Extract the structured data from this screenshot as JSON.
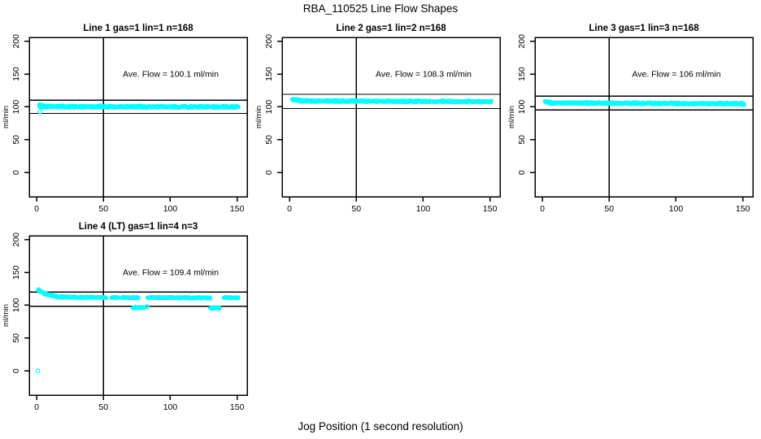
{
  "chart_data": {
    "type": "scatter",
    "title": "RBA_110525  Line Flow Shapes",
    "xlabel": "Jog Position (1 second resolution)",
    "ylabel": "ml/min",
    "point_color": "#00FFFF",
    "axis_color": "#000000",
    "x_ticks": [
      0,
      50,
      100,
      150
    ],
    "y_ticks": [
      0,
      50,
      100,
      150,
      200
    ],
    "xlim": [
      -5.5,
      157.5
    ],
    "ylim": [
      -37,
      206
    ],
    "vline_x": 50,
    "legend": "none",
    "grid": false,
    "panels": [
      {
        "title": "Line 1 gas=1 lin=1 n=168",
        "ave_flow": 100.1,
        "ave_label": "Ave. Flow =  100.1  ml/min",
        "ref_lines": [
          110.1,
          90.1
        ],
        "band": [
          {
            "x0": 2,
            "x1": 6,
            "y0": 103.0,
            "y1": 101.5,
            "spread": 1.2,
            "step": 0.2
          },
          {
            "x0": 2,
            "x1": 151,
            "y0": 100.8,
            "y1": 100.0,
            "spread": 1.6,
            "step": 0.33
          }
        ],
        "clusters": [],
        "extra_points": [
          [
            2.5,
            92.5
          ]
        ]
      },
      {
        "title": "Line 2 gas=1 lin=2 n=168",
        "ave_flow": 108.3,
        "ave_label": "Ave. Flow =  108.3  ml/min",
        "ref_lines": [
          119.1,
          97.5
        ],
        "band": [
          {
            "x0": 2,
            "x1": 12,
            "y0": 111.5,
            "y1": 109.3,
            "spread": 1.3,
            "step": 0.25
          },
          {
            "x0": 8,
            "x1": 151,
            "y0": 109.2,
            "y1": 108.0,
            "spread": 1.6,
            "step": 0.33
          }
        ],
        "clusters": [],
        "extra_points": []
      },
      {
        "title": "Line 3 gas=1 lin=3 n=168",
        "ave_flow": 106,
        "ave_label": "Ave. Flow =  106  ml/min",
        "ref_lines": [
          116.6,
          95.4
        ],
        "band": [
          {
            "x0": 2,
            "x1": 7,
            "y0": 108.0,
            "y1": 106.3,
            "spread": 1.3,
            "step": 0.2
          },
          {
            "x0": 5,
            "x1": 151,
            "y0": 106.2,
            "y1": 104.8,
            "spread": 1.6,
            "step": 0.33
          }
        ],
        "clusters": [],
        "extra_points": []
      },
      {
        "title": "Line 4 (LT) gas=1 lin=4 n=3",
        "ave_flow": 109.4,
        "ave_label": "Ave. Flow =  109.4  ml/min",
        "ref_lines": [
          120.3,
          98.5
        ],
        "band": [
          {
            "x0": 1,
            "x1": 6,
            "y0": 123.5,
            "y1": 117.5,
            "spread": 1.4,
            "step": 0.2
          },
          {
            "x0": 6,
            "x1": 16,
            "y0": 117.5,
            "y1": 113.2,
            "spread": 1.3,
            "step": 0.25
          },
          {
            "x0": 16,
            "x1": 52,
            "y0": 112.8,
            "y1": 111.8,
            "spread": 1.2,
            "step": 0.3
          },
          {
            "x0": 56,
            "x1": 61,
            "y0": 111.8,
            "y1": 111.8,
            "spread": 1.1,
            "step": 0.3
          },
          {
            "x0": 64,
            "x1": 76,
            "y0": 111.8,
            "y1": 111.6,
            "spread": 1.1,
            "step": 0.3
          },
          {
            "x0": 83,
            "x1": 130,
            "y0": 111.8,
            "y1": 111.4,
            "spread": 1.2,
            "step": 0.3
          },
          {
            "x0": 140,
            "x1": 151,
            "y0": 111.5,
            "y1": 111.5,
            "spread": 1.1,
            "step": 0.3
          }
        ],
        "clusters": [
          {
            "x0": 72,
            "x1": 80,
            "y": 96.5,
            "spread": 1.4,
            "step": 0.25
          },
          {
            "x0": 82,
            "x1": 83,
            "y": 98.0,
            "spread": 0.4,
            "step": 0.5
          },
          {
            "x0": 130,
            "x1": 137,
            "y": 96.0,
            "spread": 1.3,
            "step": 0.3
          }
        ],
        "extra_points": [
          [
            1,
            0
          ]
        ]
      }
    ]
  }
}
